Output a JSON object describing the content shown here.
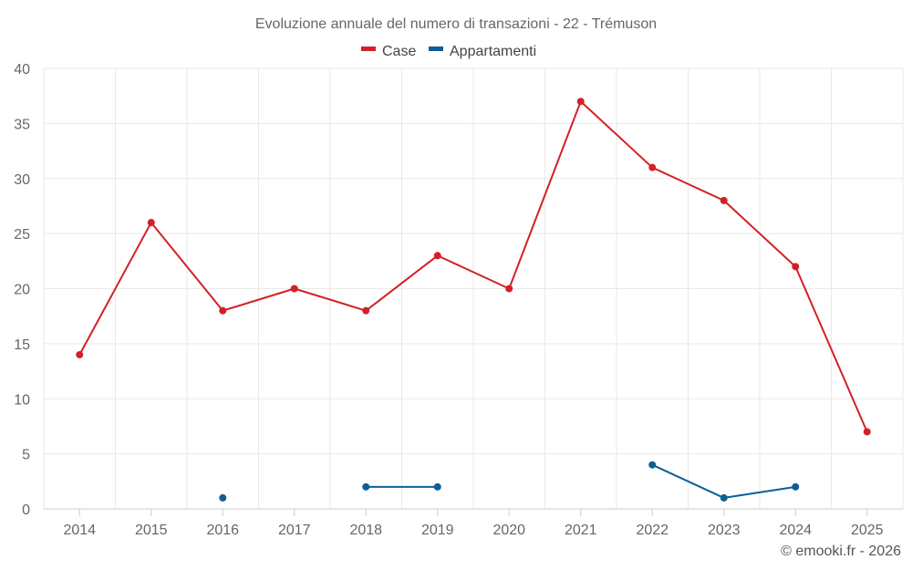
{
  "chart_data": {
    "type": "line",
    "title": "Evoluzione annuale del numero di transazioni - 22 - Trémuson",
    "xlabel": "",
    "ylabel": "",
    "categories": [
      "2014",
      "2015",
      "2016",
      "2017",
      "2018",
      "2019",
      "2020",
      "2021",
      "2022",
      "2023",
      "2024",
      "2025"
    ],
    "ylim": [
      0,
      40
    ],
    "yticks": [
      0,
      5,
      10,
      15,
      20,
      25,
      30,
      35,
      40
    ],
    "grid": true,
    "legend_position": "top-center",
    "series": [
      {
        "name": "Case",
        "color": "#d32027",
        "values": [
          14,
          26,
          18,
          20,
          18,
          23,
          20,
          37,
          31,
          28,
          22,
          7
        ]
      },
      {
        "name": "Appartamenti",
        "color": "#0c5f96",
        "values": [
          null,
          null,
          1,
          null,
          2,
          2,
          null,
          null,
          4,
          1,
          2,
          null
        ]
      }
    ]
  },
  "credit": "© emooki.fr - 2026"
}
